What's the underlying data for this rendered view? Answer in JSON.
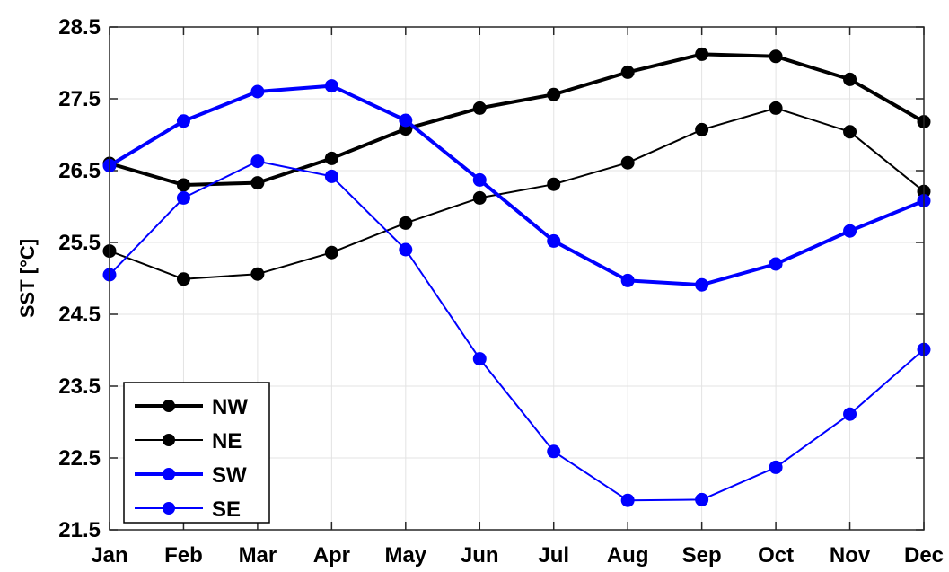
{
  "chart_data": {
    "type": "line",
    "title": "",
    "xlabel": "",
    "ylabel": "SST [°C]",
    "categories": [
      "Jan",
      "Feb",
      "Mar",
      "Apr",
      "May",
      "Jun",
      "Jul",
      "Aug",
      "Sep",
      "Oct",
      "Nov",
      "Dec"
    ],
    "ylim": [
      21.5,
      28.5
    ],
    "yticks": [
      "21.5",
      "22.5",
      "23.5",
      "24.5",
      "25.5",
      "26.5",
      "27.5",
      "28.5"
    ],
    "grid": true,
    "legend_position": "bottom-left",
    "series": [
      {
        "name": "NW",
        "color": "#000000",
        "style": "thick",
        "values": [
          26.6,
          26.3,
          26.33,
          26.67,
          27.08,
          27.37,
          27.56,
          27.87,
          28.12,
          28.09,
          27.77,
          27.18
        ]
      },
      {
        "name": "NE",
        "color": "#000000",
        "style": "thin",
        "values": [
          25.38,
          24.99,
          25.06,
          25.36,
          25.77,
          26.12,
          26.31,
          26.61,
          27.07,
          27.37,
          27.04,
          26.21
        ]
      },
      {
        "name": "SW",
        "color": "#0000ff",
        "style": "thick",
        "values": [
          26.57,
          27.19,
          27.6,
          27.68,
          27.2,
          26.37,
          25.52,
          24.97,
          24.91,
          25.2,
          25.66,
          26.08
        ]
      },
      {
        "name": "SE",
        "color": "#0000ff",
        "style": "thin",
        "values": [
          25.05,
          26.12,
          26.63,
          26.42,
          25.4,
          23.88,
          22.59,
          21.91,
          21.92,
          22.37,
          23.11,
          24.01
        ]
      }
    ]
  }
}
